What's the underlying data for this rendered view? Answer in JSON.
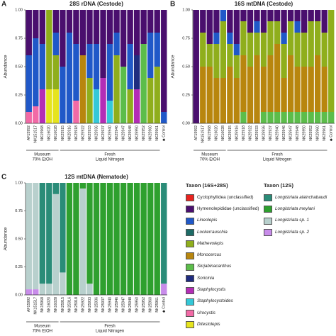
{
  "chart_data": [
    {
      "type": "stacked_bar",
      "panel": "A",
      "title": "28S rDNA (Cestode)",
      "ylabel": "Abundance",
      "legend_title": "Taxon (16S+28S)",
      "categories": [
        "AF15992",
        "NK151517",
        "NK15968",
        "NK16020",
        "NK16028",
        "NK25915",
        "NK25916",
        "NK25918",
        "NK25922",
        "NK25933",
        "NK25936",
        "NK25937",
        "NK25940",
        "NK25946",
        "NK25947",
        "NK25948",
        "NK25950",
        "NK25952",
        "NK25960",
        "NK25961",
        "◆ Control"
      ],
      "groups": [
        {
          "name": "Museum",
          "note": "70% EtOH"
        },
        {
          "name": "Fresh",
          "note": "Liquid Nitrogen"
        }
      ],
      "ylim": [
        0,
        1
      ],
      "yticks": [
        {
          "value": 0,
          "label": "0.00"
        },
        {
          "value": 0.25,
          "label": "0.25"
        },
        {
          "value": 0.5,
          "label": "0.50"
        },
        {
          "value": 0.75,
          "label": "0.75"
        },
        {
          "value": 1,
          "label": "1.00"
        }
      ],
      "series": [
        {
          "name": "Cyclophyllidea (unclassified)",
          "color": "#e8231e",
          "italic": false,
          "values": [
            0,
            0,
            0,
            0,
            0,
            0,
            0,
            0,
            0,
            0,
            0,
            0,
            0,
            0,
            0,
            0,
            0,
            0,
            0,
            0,
            0
          ]
        },
        {
          "name": "Hymenolepididae (unclassified)",
          "color": "#4a0f6e",
          "italic": false,
          "values": [
            0.4,
            0.25,
            0.3,
            0,
            0.2,
            0.5,
            0.2,
            0.3,
            0.4,
            0.3,
            0.3,
            0.6,
            0.3,
            0.2,
            0.5,
            0.3,
            0.4,
            0.3,
            0.2,
            0.2,
            0.9
          ]
        },
        {
          "name": "Lineolepis",
          "color": "#2058c8",
          "italic": true,
          "values": [
            0.5,
            0.6,
            0.4,
            0,
            0.2,
            0.5,
            0.8,
            0.5,
            0,
            0.3,
            0.4,
            0,
            0.5,
            0.2,
            0,
            0.4,
            0,
            0,
            0.4,
            0.3,
            0.1
          ]
        },
        {
          "name": "Lockerrauschia",
          "color": "#1d6b66",
          "italic": true,
          "values": [
            0,
            0,
            0,
            0,
            0,
            0,
            0,
            0,
            0,
            0,
            0,
            0,
            0,
            0,
            0,
            0,
            0,
            0,
            0,
            0,
            0
          ]
        },
        {
          "name": "Mathevolepis",
          "color": "#8fae1c",
          "italic": true,
          "values": [
            0,
            0,
            0,
            0.7,
            0.3,
            0,
            0,
            0,
            0,
            0.4,
            0,
            0,
            0,
            0.6,
            0,
            0.3,
            0,
            0,
            0.4,
            0.5,
            0
          ]
        },
        {
          "name": "Monocercus",
          "color": "#b8860e",
          "italic": true,
          "values": [
            0,
            0,
            0,
            0,
            0,
            0,
            0,
            0,
            0.6,
            0,
            0,
            0,
            0,
            0,
            0,
            0,
            0,
            0,
            0,
            0,
            0
          ]
        },
        {
          "name": "Skrjabinacanthus",
          "color": "#5cbd4a",
          "italic": true,
          "values": [
            0,
            0,
            0,
            0,
            0,
            0,
            0,
            0,
            0,
            0,
            0,
            0,
            0,
            0,
            0.5,
            0,
            0,
            0.7,
            0,
            0,
            0
          ]
        },
        {
          "name": "Soricinia",
          "color": "#1f2c80",
          "italic": true,
          "values": [
            0,
            0,
            0,
            0,
            0,
            0,
            0,
            0,
            0,
            0,
            0,
            0,
            0,
            0,
            0,
            0,
            0.3,
            0,
            0,
            0,
            0
          ]
        },
        {
          "name": "Staphylocystis",
          "color": "#b42db6",
          "italic": true,
          "values": [
            0,
            0,
            0.3,
            0,
            0,
            0,
            0,
            0,
            0,
            0,
            0,
            0.4,
            0,
            0,
            0,
            0,
            0.3,
            0,
            0,
            0,
            0
          ]
        },
        {
          "name": "Staphylocystoides",
          "color": "#34c8d8",
          "italic": true,
          "values": [
            0,
            0,
            0,
            0,
            0,
            0,
            0,
            0,
            0,
            0,
            0.3,
            0,
            0.2,
            0,
            0,
            0,
            0,
            0,
            0,
            0,
            0
          ]
        },
        {
          "name": "Urocystis",
          "color": "#f26aa6",
          "italic": true,
          "values": [
            0.1,
            0.15,
            0,
            0,
            0,
            0,
            0,
            0.2,
            0,
            0,
            0,
            0,
            0,
            0,
            0,
            0,
            0,
            0,
            0,
            0,
            0
          ]
        },
        {
          "name": "Ditestolepis",
          "color": "#e6e41e",
          "italic": true,
          "values": [
            0,
            0,
            0,
            0.3,
            0.3,
            0,
            0,
            0,
            0,
            0,
            0,
            0,
            0,
            0,
            0,
            0,
            0,
            0,
            0,
            0,
            0
          ]
        }
      ]
    },
    {
      "type": "stacked_bar",
      "panel": "B",
      "title": "16S mtDNA (Cestode)",
      "ylabel": "Abundance",
      "categories": [
        "AF15992",
        "NK151517",
        "NK15968",
        "NK16020",
        "NK16028",
        "NK25915",
        "NK25916",
        "NK25918",
        "NK25922",
        "NK25933",
        "NK25936",
        "NK25937",
        "NK25940",
        "NK25946",
        "NK25947",
        "NK25948",
        "NK25950",
        "NK25952",
        "NK25960",
        "NK25961",
        "◆ Control"
      ],
      "groups": [
        {
          "name": "Museum",
          "note": "70% EtOH"
        },
        {
          "name": "Fresh",
          "note": "Liquid Nitrogen"
        }
      ],
      "ylim": [
        0,
        1
      ],
      "yticks": [
        {
          "value": 0,
          "label": "0.00"
        },
        {
          "value": 0.25,
          "label": "0.25"
        },
        {
          "value": 0.5,
          "label": "0.50"
        },
        {
          "value": 0.75,
          "label": "0.75"
        },
        {
          "value": 1,
          "label": "1.00"
        }
      ],
      "series": [
        {
          "name": "Hymenolepididae (unclassified)",
          "color": "#4a0f6e",
          "values": [
            1,
            0.2,
            0.3,
            0.2,
            0,
            0.2,
            0.3,
            0.1,
            0.2,
            0.1,
            0.2,
            0.1,
            0.1,
            0.2,
            0.1,
            0.1,
            0.2,
            0.1,
            0.1,
            0.2,
            0
          ]
        },
        {
          "name": "Lineolepis",
          "color": "#2058c8",
          "values": [
            0,
            0,
            0,
            0.1,
            0.1,
            0.1,
            0.1,
            0,
            0,
            0.1,
            0,
            0,
            0,
            0.1,
            0,
            0.1,
            0,
            0,
            0,
            0,
            0
          ]
        },
        {
          "name": "Mathevolepis",
          "color": "#8fae1c",
          "values": [
            0,
            0.3,
            0.2,
            0.3,
            0.5,
            0.2,
            0.2,
            0.3,
            0.3,
            0.2,
            0.3,
            0.3,
            0.2,
            0.3,
            0.3,
            0.3,
            0.3,
            0.4,
            0.3,
            0.3,
            0.9
          ]
        },
        {
          "name": "Monocercus",
          "color": "#b8860e",
          "values": [
            0,
            0.5,
            0.5,
            0.4,
            0.4,
            0.5,
            0.4,
            0.5,
            0.5,
            0.6,
            0.4,
            0.5,
            0.6,
            0.3,
            0.5,
            0.4,
            0.4,
            0.4,
            0.5,
            0.4,
            0
          ]
        },
        {
          "name": "Skrjabinacanthus",
          "color": "#5cbd4a",
          "values": [
            0,
            0,
            0,
            0,
            0,
            0,
            0,
            0.1,
            0,
            0,
            0.1,
            0.1,
            0.1,
            0.1,
            0.1,
            0.1,
            0.1,
            0.1,
            0.1,
            0.1,
            0.1
          ]
        }
      ]
    },
    {
      "type": "stacked_bar",
      "panel": "C",
      "title": "12S mtDNA (Nematode)",
      "ylabel": "Abundance",
      "legend_title": "Taxon (12S)",
      "categories": [
        "AF15992",
        "NK151517",
        "NK15968",
        "NK16020",
        "NK16028",
        "NK25915",
        "NK25916",
        "NK25918",
        "NK25922",
        "NK25933",
        "NK25936",
        "NK25937",
        "NK25940",
        "NK25946",
        "NK25947",
        "NK25948",
        "NK25950",
        "NK25952",
        "NK25960",
        "NK25961",
        "◆ Control"
      ],
      "groups": [
        {
          "name": "Museum",
          "note": "70% EtOH"
        },
        {
          "name": "Fresh",
          "note": "Liquid Nitrogen"
        }
      ],
      "ylim": [
        0,
        1
      ],
      "yticks": [
        {
          "value": 0,
          "label": "0.00"
        },
        {
          "value": 0.25,
          "label": "0.25"
        },
        {
          "value": 0.5,
          "label": "0.50"
        },
        {
          "value": 0.75,
          "label": "0.75"
        },
        {
          "value": 1,
          "label": "1.00"
        }
      ],
      "series": [
        {
          "name": "Longistriata alainchabaudi",
          "color": "#2a8c78",
          "italic": true,
          "values": [
            0,
            0,
            0.9,
            0.9,
            0.1,
            0.8,
            0,
            0,
            0,
            0,
            0,
            0,
            0,
            0,
            0,
            0,
            0,
            0,
            0,
            0,
            0.9
          ]
        },
        {
          "name": "Longistriata meylani",
          "color": "#2ea02e",
          "italic": true,
          "values": [
            0,
            0,
            0,
            0,
            0,
            0,
            1,
            1,
            0.05,
            0.9,
            1,
            1,
            1,
            1,
            1,
            1,
            1,
            1,
            1,
            1,
            0
          ]
        },
        {
          "name": "Longistriata sp. 1",
          "color": "#b8d0cd",
          "italic": true,
          "values": [
            0.95,
            0.95,
            0.1,
            0.1,
            0.9,
            0.2,
            0,
            0,
            0.95,
            0.1,
            0,
            0,
            0,
            0,
            0,
            0,
            0,
            0,
            0,
            0,
            0
          ]
        },
        {
          "name": "Longistriata sp. 2",
          "color": "#c88cea",
          "italic": true,
          "values": [
            0.05,
            0.05,
            0,
            0,
            0,
            0,
            0,
            0,
            0,
            0,
            0,
            0,
            0,
            0,
            0,
            0,
            0,
            0,
            0,
            0,
            0.1
          ]
        }
      ]
    }
  ]
}
